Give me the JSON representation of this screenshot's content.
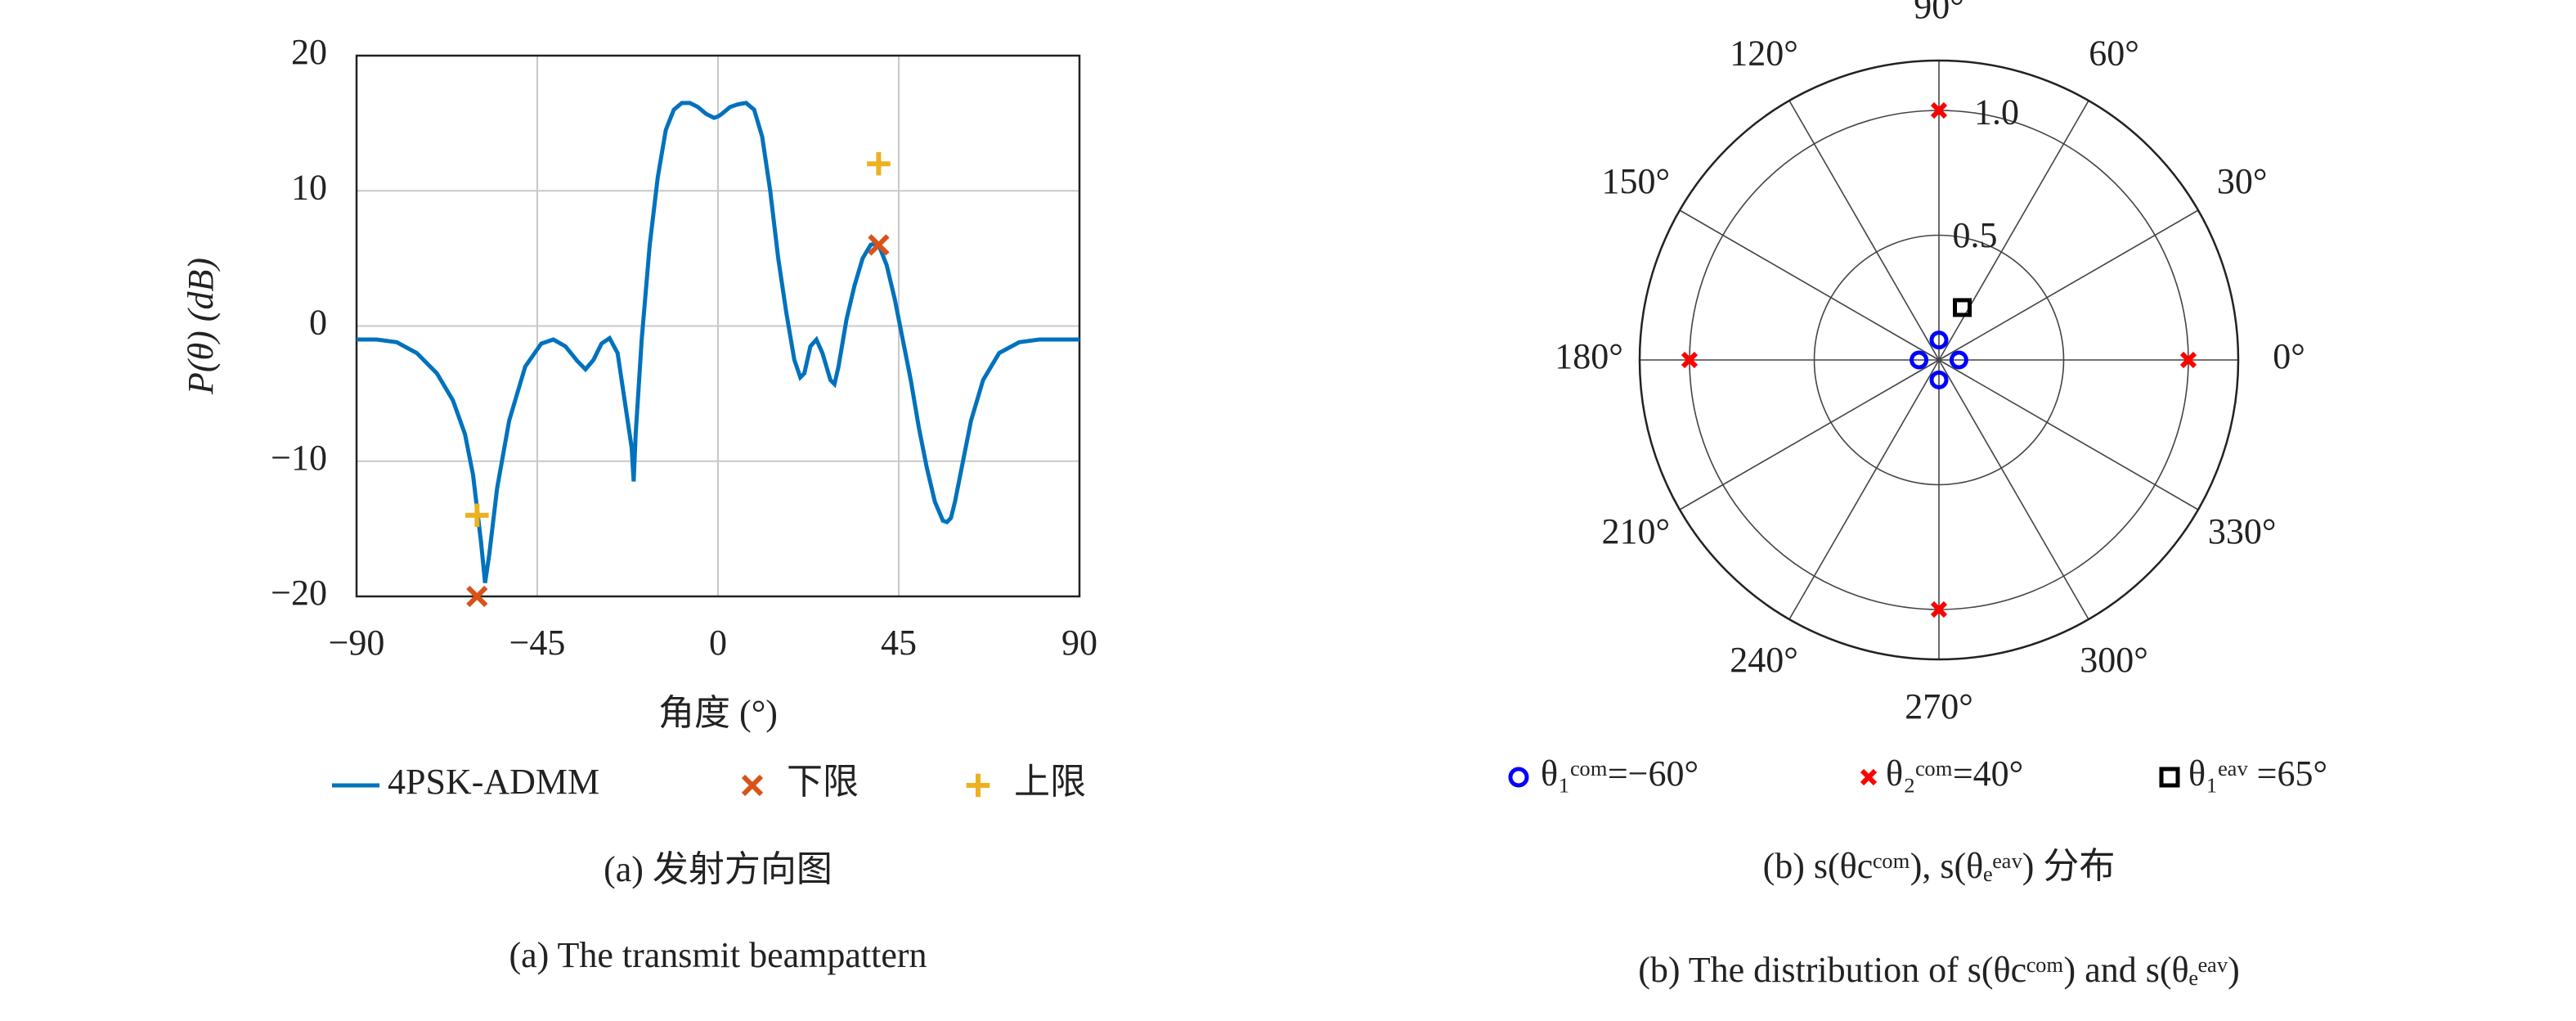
{
  "chart_data": [
    {
      "type": "line",
      "xlabel": "角度 (°)",
      "ylabel": "P(θ) (dB)",
      "xlim": [
        -90,
        90
      ],
      "ylim": [
        -20,
        20
      ],
      "xticks": [
        {
          "value": -90,
          "label": "−90"
        },
        {
          "value": -45,
          "label": "−45"
        },
        0,
        45,
        90
      ],
      "yticks": [
        {
          "value": -20,
          "label": "−20"
        },
        {
          "value": -10,
          "label": "−10"
        },
        0,
        10,
        20
      ],
      "grid": true,
      "captions": [
        "(a) 发射方向图",
        "(a) The transmit beampattern"
      ],
      "series": [
        {
          "name": "4PSK-ADMM",
          "color": "#0072bd",
          "x": [
            -90,
            -85,
            -80,
            -75,
            -70,
            -66,
            -63,
            -61,
            -59,
            -58,
            -57,
            -55,
            -52,
            -48,
            -44,
            -41,
            -38,
            -35,
            -33,
            -31,
            -29,
            -27,
            -25,
            -23,
            -21.5,
            -21,
            -20.5,
            -19,
            -17,
            -15,
            -13,
            -11,
            -9,
            -7,
            -5,
            -3,
            -1,
            0,
            1,
            3,
            5,
            7,
            9,
            11,
            13,
            15,
            17,
            19,
            20.5,
            21.5,
            23,
            24.5,
            26,
            28,
            29,
            30,
            32,
            34,
            36,
            38,
            39,
            40,
            42,
            44,
            46,
            48,
            50,
            52,
            54,
            56,
            57,
            58,
            59,
            61,
            63,
            66,
            70,
            75,
            80,
            85,
            90
          ],
          "values": [
            -1,
            -1,
            -1.2,
            -2,
            -3.5,
            -5.5,
            -8,
            -11,
            -16,
            -19,
            -17,
            -12,
            -7,
            -3,
            -1.3,
            -1,
            -1.5,
            -2.6,
            -3.2,
            -2.5,
            -1.3,
            -0.9,
            -2,
            -6,
            -9,
            -11.5,
            -8,
            -1,
            6,
            11,
            14.5,
            16,
            16.5,
            16.5,
            16.2,
            15.7,
            15.4,
            15.5,
            15.7,
            16.2,
            16.4,
            16.5,
            16,
            14,
            10,
            5,
            1,
            -2.5,
            -3.8,
            -3.5,
            -1.5,
            -1,
            -2,
            -4,
            -4.3,
            -3,
            0.5,
            3,
            5,
            6,
            6.1,
            6,
            4.5,
            2,
            -1,
            -4,
            -7.5,
            -10.5,
            -13,
            -14.4,
            -14.5,
            -14.2,
            -13,
            -10,
            -7,
            -4,
            -2,
            -1.2,
            -1,
            -1,
            -1
          ]
        },
        {
          "name": "下限",
          "color": "#d95319",
          "marker": "x",
          "x": [
            -60,
            40
          ],
          "values": [
            -20,
            6
          ]
        },
        {
          "name": "上限",
          "color": "#edb120",
          "marker": "+",
          "x": [
            -60,
            40
          ],
          "values": [
            -14,
            12
          ]
        }
      ]
    },
    {
      "type": "polar",
      "rlim": [
        0,
        1.2
      ],
      "rticks": [
        0.5,
        {
          "value": 1,
          "label": "1.0"
        }
      ],
      "thetaticks": [
        {
          "value": 0,
          "label": "0°"
        },
        {
          "value": 30,
          "label": "30°"
        },
        {
          "value": 60,
          "label": "60°"
        },
        {
          "value": 90,
          "label": "90°"
        },
        {
          "value": 120,
          "label": "120°"
        },
        {
          "value": 150,
          "label": "150°"
        },
        {
          "value": 180,
          "label": "180°"
        },
        {
          "value": 210,
          "label": "210°"
        },
        {
          "value": 240,
          "label": "240°"
        },
        {
          "value": 270,
          "label": "270°"
        },
        {
          "value": 300,
          "label": "300°"
        },
        {
          "value": 330,
          "label": "330°"
        }
      ],
      "captions": [
        "(b) s(θcᶜᵒᵐ), s(θₑᵉᵃᵛ) 分布",
        "(b) The distribution of  s(θcᶜᵒᵐ)  and  s(θₑᵉᵃᵛ)"
      ],
      "series": [
        {
          "name": "θ₁ᶜᵒᵐ=−60°",
          "color": "#0000ff",
          "marker": "o",
          "theta": [
            0,
            90,
            180,
            270
          ],
          "r": [
            0.08,
            0.08,
            0.08,
            0.08
          ]
        },
        {
          "name": "θ₂ᶜᵒᵐ=40°",
          "color": "#ff0000",
          "marker": "x",
          "theta": [
            0,
            90,
            180,
            270
          ],
          "r": [
            1,
            1,
            1,
            1
          ]
        },
        {
          "name": "θ₁ᵉᵃᵛ =65°",
          "color": "#000000",
          "marker": "s",
          "theta": [
            66
          ],
          "r": [
            0.23
          ]
        }
      ]
    }
  ]
}
